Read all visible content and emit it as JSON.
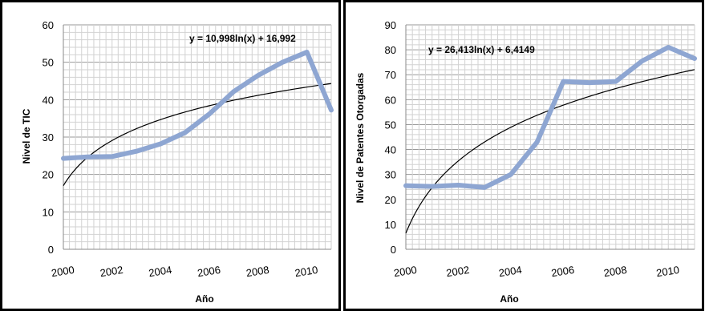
{
  "chart_data": [
    {
      "type": "line",
      "title": "",
      "xlabel": "Año",
      "ylabel": "Nivel de TIC",
      "xlim": [
        2000,
        2011
      ],
      "ylim": [
        0,
        60
      ],
      "ytick_step": 10,
      "x_tick_labels": [
        "2000",
        "2002",
        "2004",
        "2006",
        "2008",
        "2010"
      ],
      "y_tick_labels": [
        "0",
        "10",
        "20",
        "30",
        "40",
        "50",
        "60"
      ],
      "grid": true,
      "x": [
        2000,
        2001,
        2002,
        2003,
        2004,
        2005,
        2006,
        2007,
        2008,
        2009,
        2010,
        2011
      ],
      "series": [
        {
          "values": [
            24.3,
            24.7,
            24.8,
            26.2,
            28.2,
            31.2,
            36.2,
            42.2,
            46.5,
            50.0,
            52.7,
            37.2
          ],
          "color": "#8EA6D2"
        }
      ],
      "trendline": {
        "kind": "logarithmic",
        "a": 10.998,
        "b": 16.992,
        "color": "#000000"
      },
      "annotation": "y = 10,998ln(x) + 16,992"
    },
    {
      "type": "line",
      "title": "",
      "xlabel": "Año",
      "ylabel": "Nivel  de Patentes Otorgadas",
      "xlim": [
        2000,
        2011
      ],
      "ylim": [
        0,
        90
      ],
      "ytick_step": 10,
      "x_tick_labels": [
        "2000",
        "2002",
        "2004",
        "2006",
        "2008",
        "2010"
      ],
      "y_tick_labels": [
        "0",
        "10",
        "20",
        "30",
        "40",
        "50",
        "60",
        "70",
        "80",
        "90"
      ],
      "grid": true,
      "x": [
        2000,
        2001,
        2002,
        2003,
        2004,
        2005,
        2006,
        2007,
        2008,
        2009,
        2010,
        2011
      ],
      "series": [
        {
          "values": [
            25.5,
            25.2,
            25.7,
            24.8,
            30.0,
            43.0,
            67.3,
            66.8,
            67.3,
            75.5,
            81.0,
            76.5
          ],
          "color": "#8EA6D2"
        }
      ],
      "trendline": {
        "kind": "logarithmic",
        "a": 26.413,
        "b": 6.4149,
        "color": "#000000"
      },
      "annotation": "y = 26,413ln(x) + 6,4149"
    }
  ]
}
